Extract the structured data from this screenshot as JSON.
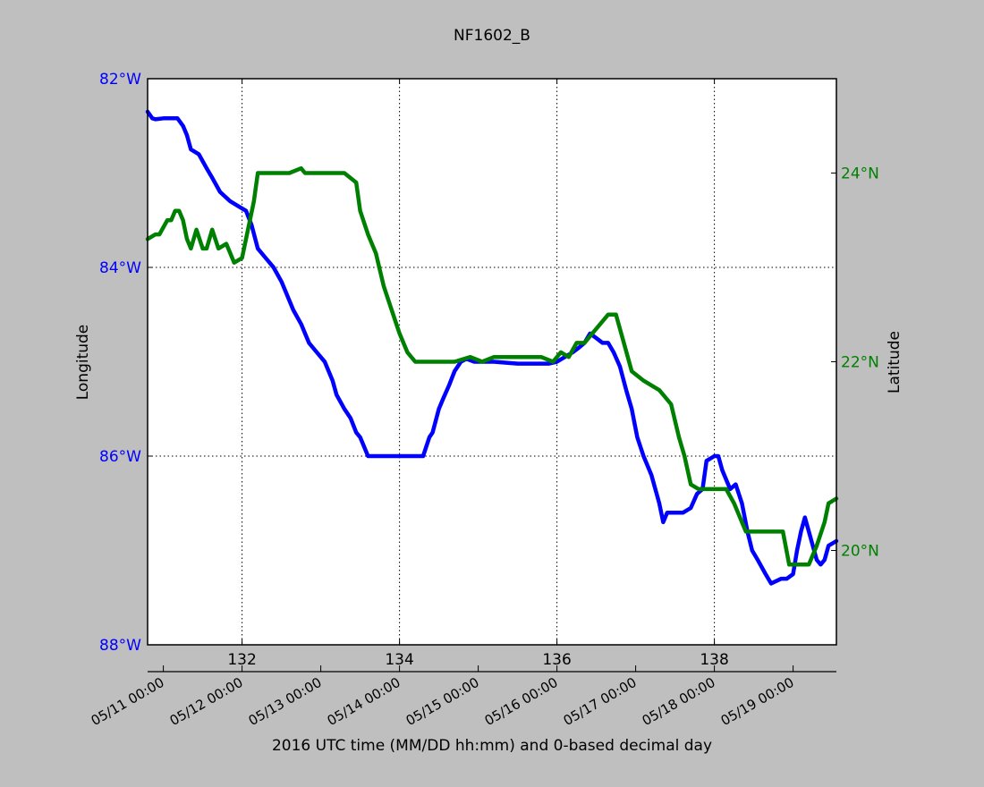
{
  "chart_data": {
    "type": "line",
    "title": "NF1602_B",
    "xlabel": "2016 UTC time (MM/DD hh:mm) and 0-based decimal day",
    "ylabel_left": "Longitude",
    "ylabel_right": "Latitude",
    "xlim": [
      130.8,
      139.55
    ],
    "ylim_left": [
      -88,
      -82
    ],
    "ylim_right": [
      19,
      25
    ],
    "grid": true,
    "colors": {
      "background": "#bfbfbf",
      "plot_bg": "#ffffff",
      "longitude": "#0000ff",
      "latitude": "#008000",
      "text": "#000000"
    },
    "x_ticks": [
      132,
      134,
      136,
      138
    ],
    "x_tick_labels": [
      "132",
      "134",
      "136",
      "138"
    ],
    "date_ticks": [
      {
        "x": 131,
        "label": "05/11 00:00"
      },
      {
        "x": 132,
        "label": "05/12 00:00"
      },
      {
        "x": 133,
        "label": "05/13 00:00"
      },
      {
        "x": 134,
        "label": "05/14 00:00"
      },
      {
        "x": 135,
        "label": "05/15 00:00"
      },
      {
        "x": 136,
        "label": "05/16 00:00"
      },
      {
        "x": 137,
        "label": "05/17 00:00"
      },
      {
        "x": 138,
        "label": "05/18 00:00"
      },
      {
        "x": 139,
        "label": "05/19 00:00"
      }
    ],
    "y_left_ticks": [
      -82,
      -84,
      -86,
      -88
    ],
    "y_left_tick_labels": [
      "82°W",
      "84°W",
      "86°W",
      "88°W"
    ],
    "y_right_ticks": [
      24,
      22,
      20
    ],
    "y_right_tick_labels": [
      "24°N",
      "22°N",
      "20°N"
    ],
    "series": [
      {
        "axis": "left",
        "color": "#0000ff",
        "x": [
          130.8,
          130.86,
          130.9,
          131.0,
          131.1,
          131.18,
          131.25,
          131.3,
          131.35,
          131.45,
          131.55,
          131.62,
          131.72,
          131.85,
          131.95,
          132.05,
          132.12,
          132.2,
          132.3,
          132.4,
          132.5,
          132.6,
          132.65,
          132.75,
          132.85,
          132.95,
          133.05,
          133.15,
          133.2,
          133.3,
          133.38,
          133.45,
          133.5,
          133.6,
          134.0,
          134.3,
          134.38,
          134.42,
          134.5,
          134.55,
          134.63,
          134.7,
          134.78,
          134.85,
          134.95,
          135.05,
          135.2,
          135.5,
          135.9,
          136.0,
          136.1,
          136.2,
          136.28,
          136.35,
          136.42,
          136.5,
          136.58,
          136.65,
          136.72,
          136.8,
          136.88,
          136.95,
          137.02,
          137.1,
          137.2,
          137.3,
          137.35,
          137.4,
          137.5,
          137.6,
          137.7,
          137.78,
          137.85,
          137.9,
          138.0,
          138.05,
          138.1,
          138.2,
          138.27,
          138.35,
          138.42,
          138.48,
          138.55,
          138.65,
          138.72,
          138.85,
          138.92,
          139.0,
          139.05,
          139.1,
          139.15,
          139.2,
          139.25,
          139.3,
          139.35,
          139.4,
          139.45,
          139.55
        ],
        "y": [
          -82.35,
          -82.42,
          -82.43,
          -82.42,
          -82.42,
          -82.42,
          -82.5,
          -82.6,
          -82.75,
          -82.8,
          -82.95,
          -83.05,
          -83.2,
          -83.3,
          -83.35,
          -83.4,
          -83.55,
          -83.8,
          -83.9,
          -84.0,
          -84.15,
          -84.35,
          -84.45,
          -84.6,
          -84.8,
          -84.9,
          -85.0,
          -85.2,
          -85.35,
          -85.5,
          -85.6,
          -85.75,
          -85.8,
          -86.0,
          -86.0,
          -86.0,
          -85.8,
          -85.75,
          -85.5,
          -85.4,
          -85.25,
          -85.1,
          -85.0,
          -84.97,
          -85.0,
          -85.0,
          -85.0,
          -85.02,
          -85.02,
          -85.0,
          -84.95,
          -84.9,
          -84.85,
          -84.8,
          -84.7,
          -84.75,
          -84.8,
          -84.8,
          -84.9,
          -85.05,
          -85.3,
          -85.5,
          -85.8,
          -86.0,
          -86.2,
          -86.5,
          -86.7,
          -86.6,
          -86.6,
          -86.6,
          -86.55,
          -86.4,
          -86.35,
          -86.05,
          -86.0,
          -86.0,
          -86.15,
          -86.35,
          -86.3,
          -86.5,
          -86.8,
          -87.0,
          -87.1,
          -87.25,
          -87.35,
          -87.3,
          -87.3,
          -87.25,
          -87.0,
          -86.8,
          -86.65,
          -86.8,
          -86.95,
          -87.1,
          -87.15,
          -87.1,
          -86.95,
          -86.9
        ]
      },
      {
        "axis": "right",
        "color": "#008000",
        "x": [
          130.8,
          130.9,
          130.95,
          131.05,
          131.1,
          131.15,
          131.2,
          131.25,
          131.3,
          131.35,
          131.42,
          131.5,
          131.55,
          131.62,
          131.7,
          131.8,
          131.9,
          132.0,
          132.05,
          132.15,
          132.2,
          132.3,
          132.4,
          132.6,
          132.75,
          132.8,
          133.0,
          133.3,
          133.45,
          133.5,
          133.6,
          133.7,
          133.8,
          133.9,
          134.0,
          134.1,
          134.2,
          134.3,
          134.4,
          134.5,
          134.7,
          134.9,
          135.05,
          135.2,
          135.5,
          135.8,
          135.95,
          136.05,
          136.15,
          136.25,
          136.35,
          136.45,
          136.55,
          136.65,
          136.75,
          136.85,
          136.95,
          137.1,
          137.2,
          137.3,
          137.35,
          137.45,
          137.55,
          137.62,
          137.7,
          137.8,
          138.0,
          138.1,
          138.15,
          138.25,
          138.4,
          138.6,
          138.75,
          138.82,
          138.87,
          138.95,
          139.05,
          139.1,
          139.2,
          139.3,
          139.4,
          139.45,
          139.55
        ],
        "y": [
          23.3,
          23.35,
          23.35,
          23.5,
          23.5,
          23.6,
          23.6,
          23.5,
          23.3,
          23.2,
          23.4,
          23.2,
          23.2,
          23.4,
          23.2,
          23.25,
          23.05,
          23.1,
          23.3,
          23.7,
          24.0,
          24.0,
          24.0,
          24.0,
          24.05,
          24.0,
          24.0,
          24.0,
          23.9,
          23.6,
          23.35,
          23.15,
          22.8,
          22.55,
          22.3,
          22.1,
          22.0,
          22.0,
          22.0,
          22.0,
          22.0,
          22.05,
          22.0,
          22.05,
          22.05,
          22.05,
          22.0,
          22.1,
          22.05,
          22.2,
          22.2,
          22.3,
          22.4,
          22.5,
          22.5,
          22.2,
          21.9,
          21.8,
          21.75,
          21.7,
          21.65,
          21.55,
          21.2,
          21.0,
          20.7,
          20.65,
          20.65,
          20.65,
          20.65,
          20.5,
          20.2,
          20.2,
          20.2,
          20.2,
          20.2,
          19.85,
          19.85,
          19.85,
          19.85,
          20.05,
          20.3,
          20.5,
          20.55
        ]
      }
    ]
  }
}
